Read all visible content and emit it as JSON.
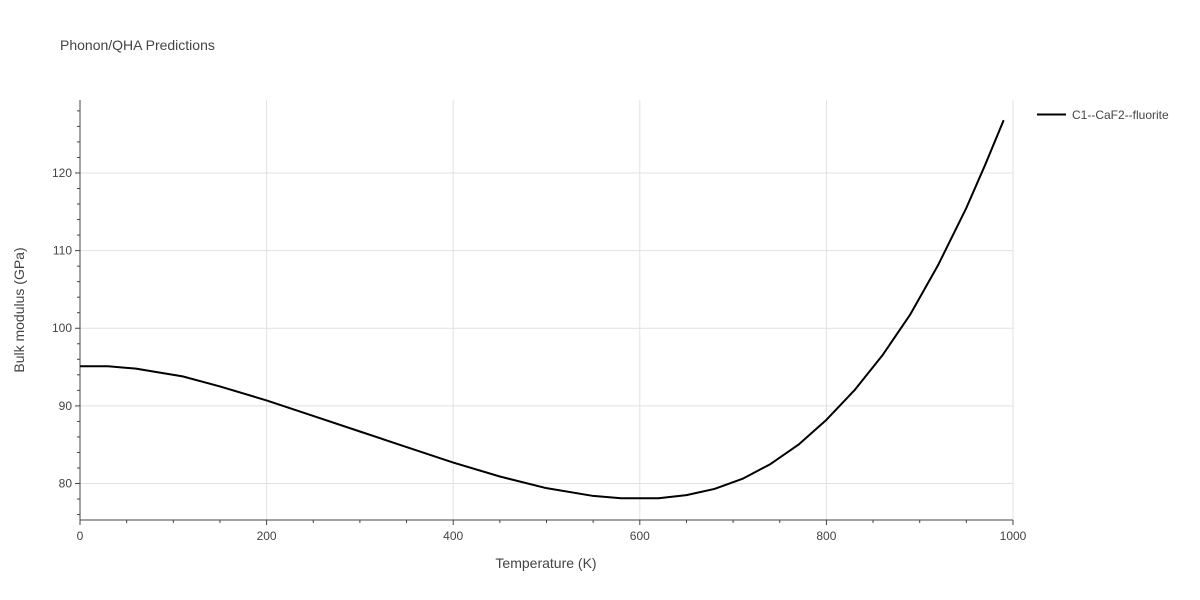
{
  "chart_data": {
    "type": "line",
    "title": "Phonon/QHA Predictions",
    "xlabel": "Temperature (K)",
    "ylabel": "Bulk modulus (GPa)",
    "xlim": [
      0,
      1000
    ],
    "ylim": [
      75.3,
      129.4
    ],
    "xticks": [
      0,
      200,
      400,
      600,
      800,
      1000
    ],
    "yticks": [
      80,
      90,
      100,
      110,
      120
    ],
    "grid": true,
    "legend_position": "top-right",
    "series": [
      {
        "name": "C1--CaF2--fluorite",
        "color": "#000000",
        "x": [
          0,
          30,
          60,
          80,
          110,
          150,
          200,
          250,
          300,
          350,
          400,
          450,
          500,
          550,
          580,
          620,
          650,
          680,
          710,
          740,
          770,
          800,
          830,
          860,
          890,
          920,
          950,
          970,
          990
        ],
        "y": [
          95.1,
          95.1,
          94.8,
          94.4,
          93.8,
          92.5,
          90.7,
          88.7,
          86.7,
          84.7,
          82.7,
          80.9,
          79.4,
          78.4,
          78.1,
          78.1,
          78.5,
          79.3,
          80.6,
          82.5,
          85.0,
          88.2,
          92.0,
          96.5,
          101.8,
          108.2,
          115.5,
          121.0,
          126.8
        ]
      }
    ]
  }
}
